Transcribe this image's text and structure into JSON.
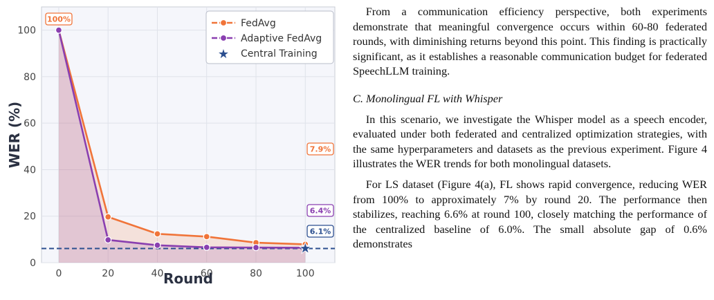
{
  "chart_data": {
    "type": "line",
    "x": [
      0,
      20,
      40,
      60,
      80,
      100
    ],
    "series": [
      {
        "name": "FedAvg",
        "values": [
          100,
          19.7,
          12.4,
          11.2,
          8.6,
          7.9
        ],
        "color": "#f07439"
      },
      {
        "name": "Adaptive FedAvg",
        "values": [
          100,
          9.8,
          7.5,
          6.6,
          6.5,
          6.4
        ],
        "color": "#8a3fb0"
      }
    ],
    "reference": {
      "name": "Central Training",
      "value": 6.1,
      "x": 100,
      "color": "#2b4e8f"
    },
    "xlabel": "Round",
    "ylabel": "WER (%)",
    "xlim": [
      -7,
      112
    ],
    "ylim": [
      0,
      110
    ],
    "xticks": [
      "0",
      "20",
      "40",
      "60",
      "80",
      "100"
    ],
    "yticks": [
      "0",
      "20",
      "40",
      "60",
      "80",
      "100"
    ],
    "grid": true,
    "legend": "top-right",
    "annotations": [
      {
        "text": "100%",
        "color": "#f07439"
      },
      {
        "text": "7.9%",
        "color": "#f07439"
      },
      {
        "text": "6.4%",
        "color": "#8a3fb0"
      },
      {
        "text": "6.1%",
        "color": "#2b4e8f"
      }
    ]
  },
  "text": {
    "para1": "From a communication efficiency perspective, both experiments demonstrate that meaningful convergence occurs within 60-80 federated rounds, with diminishing returns beyond this point. This finding is practically significant, as it establishes a reasonable communication budget for federated SpeechLLM training.",
    "heading": "C. Monolingual FL with Whisper",
    "para2": "In this scenario, we investigate the Whisper model as a speech encoder, evaluated under both federated and centralized optimization strategies, with the same hyperparameters and datasets as the previous experiment. Figure 4 illustrates the WER trends for both monolingual datasets.",
    "para3": "For LS dataset (Figure 4(a), FL shows rapid convergence, reducing WER from 100% to approximately 7% by round 20. The performance then stabilizes, reaching 6.6% at round 100, closely matching the performance of the centralized baseline of 6.0%. The small absolute gap of 0.6% demonstrates"
  }
}
